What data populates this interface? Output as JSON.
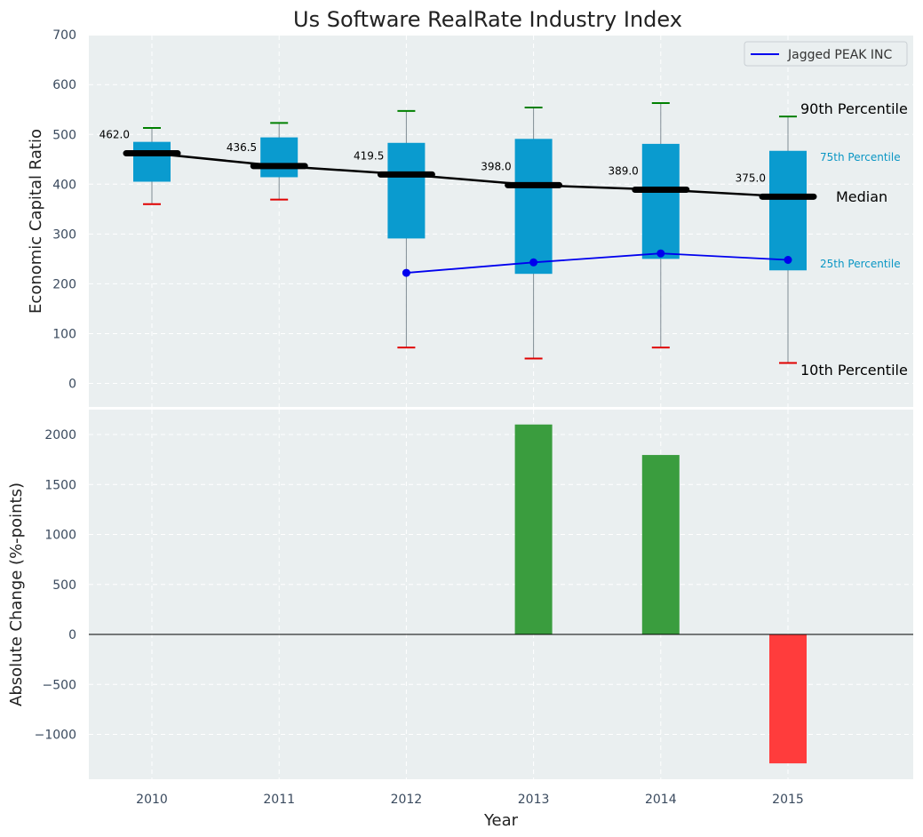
{
  "chart_data": [
    {
      "type": "box",
      "title": "Us Software RealRate Industry Index",
      "ylabel": "Economic Capital Ratio",
      "ylim": [
        -50,
        700
      ],
      "yticks": [
        "0",
        "100",
        "200",
        "300",
        "400",
        "500",
        "600",
        "700"
      ],
      "categories": [
        "2010",
        "2011",
        "2012",
        "2013",
        "2014",
        "2015"
      ],
      "p10": [
        360,
        369,
        72,
        50,
        72,
        41
      ],
      "p25": [
        405,
        414,
        291,
        220,
        250,
        227
      ],
      "median": [
        462.0,
        436.5,
        419.5,
        398.0,
        389.0,
        375.0
      ],
      "median_labels": [
        "462.0",
        "436.5",
        "419.5",
        "398.0",
        "389.0",
        "375.0"
      ],
      "p75": [
        485,
        494,
        483,
        491,
        481,
        467
      ],
      "p90": [
        513,
        523,
        547,
        554,
        563,
        536
      ],
      "series": [
        {
          "name": "Jagged PEAK INC",
          "x": [
            "2012",
            "2013",
            "2014",
            "2015"
          ],
          "values": [
            222,
            243,
            261,
            248
          ]
        }
      ],
      "annotations": {
        "p90": "90th Percentile",
        "p75": "75th Percentile",
        "median": "Median",
        "p25": "25th Percentile",
        "p10": "10th Percentile"
      },
      "legend": {
        "label": "Jagged PEAK INC",
        "position": "top-right"
      }
    },
    {
      "type": "bar",
      "ylabel": "Absolute Change (%-points)",
      "xlabel": "Year",
      "ylim": [
        -1450,
        2300
      ],
      "yticks": [
        "−1000",
        "−500",
        "0",
        "500",
        "1000",
        "1500",
        "2000"
      ],
      "ytick_values": [
        -1000,
        -500,
        0,
        500,
        1000,
        1500,
        2000
      ],
      "categories": [
        "2010",
        "2011",
        "2012",
        "2013",
        "2014",
        "2015"
      ],
      "values": [
        0,
        0,
        0,
        2100,
        1795,
        -1290
      ]
    }
  ],
  "colors": {
    "panel_bg": "#eaeff0",
    "box": "#0a9bcf",
    "median_line": "#000000",
    "series": "#0000ee",
    "p90_cap": "#008000",
    "p10_cap": "#e00000",
    "positive": "#3a9d3e",
    "negative": "#ff3c3c"
  }
}
